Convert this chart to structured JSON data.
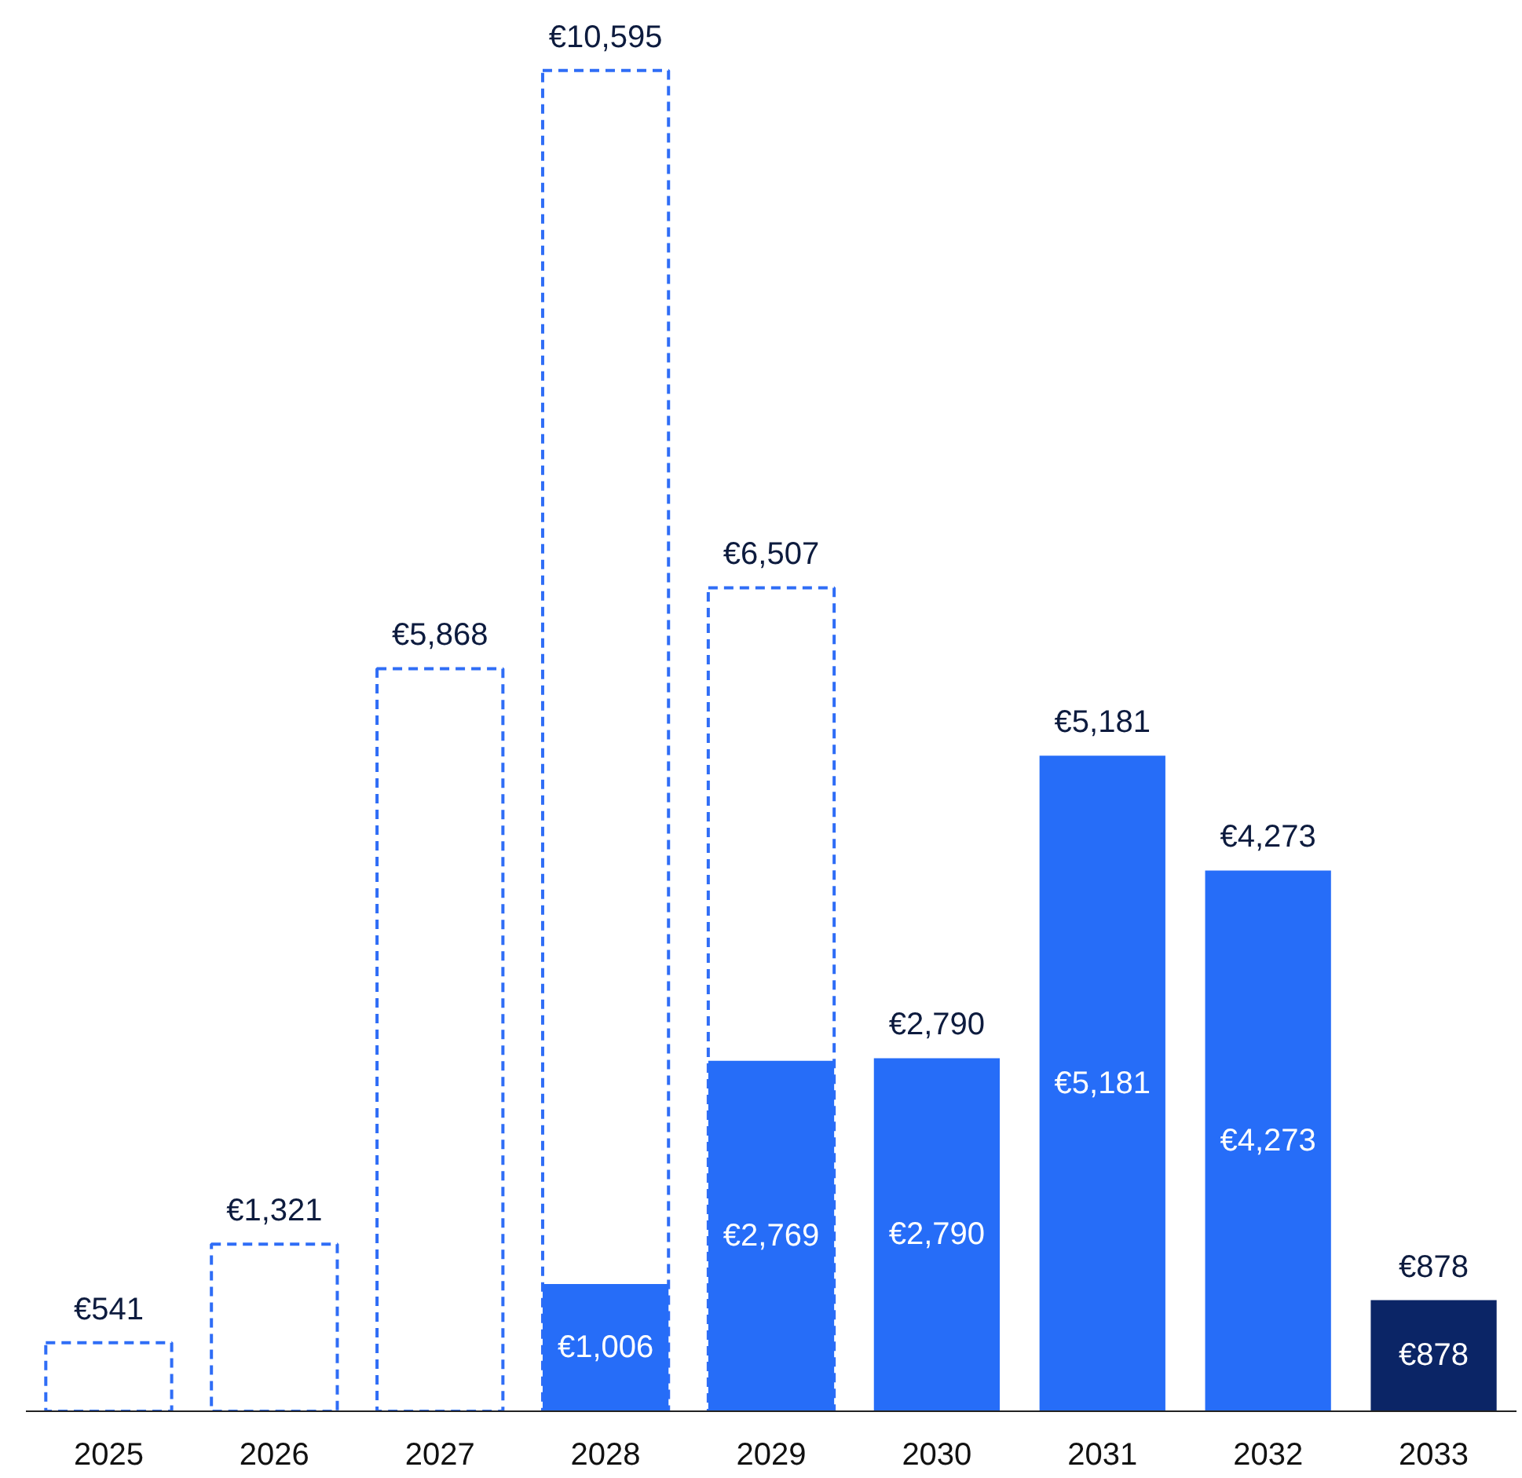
{
  "chart_data": {
    "type": "bar",
    "categories": [
      "2025",
      "2026",
      "2027",
      "2028",
      "2029",
      "2030",
      "2031",
      "2032",
      "2033"
    ],
    "series": [
      {
        "color": "#2f6df6",
        "line_style": "dashed",
        "values": [
          541,
          1321,
          5868,
          10595,
          6507,
          null,
          null,
          null,
          null
        ],
        "value_labels": [
          "€541",
          "€1,321",
          "€5,868",
          "€10,595",
          "€6,507",
          null,
          null,
          null,
          null
        ]
      },
      {
        "color": "#266df8",
        "colors": [
          null,
          null,
          null,
          null,
          null,
          null,
          null,
          null,
          "#0b2566"
        ],
        "values": [
          null,
          null,
          null,
          1006,
          2769,
          2790,
          5181,
          4273,
          878
        ],
        "value_labels": [
          null,
          null,
          null,
          "€1,006",
          "€2,769",
          "€2,790",
          "€5,181",
          "€4,273",
          "€878"
        ]
      }
    ],
    "annotations": [
      {
        "text": "€2,790",
        "x": "2030",
        "y": 2790
      },
      {
        "text": "€5,181",
        "x": "2031",
        "y": 5181
      },
      {
        "text": "€4,273",
        "x": "2032",
        "y": 4273
      },
      {
        "text": "€878",
        "x": "2033",
        "y": 878
      }
    ],
    "tick_labels": "x"
  }
}
